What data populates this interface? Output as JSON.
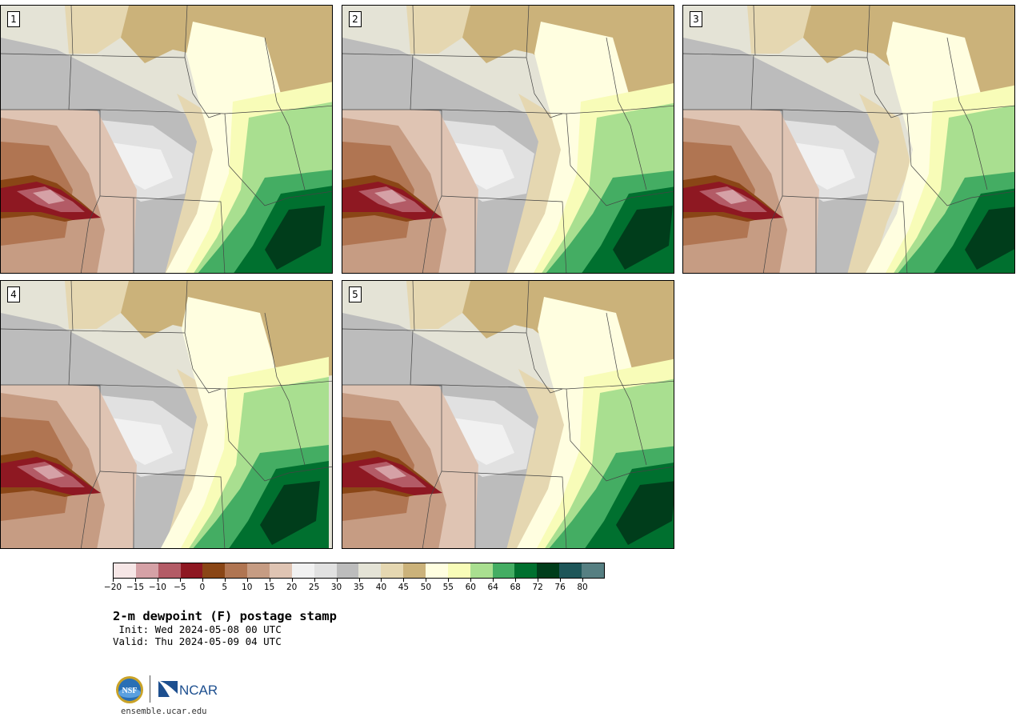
{
  "panels": [
    {
      "label": "1",
      "variant": 0
    },
    {
      "label": "2",
      "variant": 1
    },
    {
      "label": "3",
      "variant": 2
    },
    {
      "label": "4",
      "variant": 3
    },
    {
      "label": "5",
      "variant": 4
    }
  ],
  "colorbar": {
    "colors": [
      "#f6e6e6",
      "#d5a1a6",
      "#b35b66",
      "#8e1822",
      "#8a4616",
      "#b07552",
      "#c69c83",
      "#dfc4b3",
      "#f1f1f1",
      "#e1e1e1",
      "#bcbcbc",
      "#e4e3d6",
      "#e5d7b1",
      "#cbb27a",
      "#fffee0",
      "#f8fcb8",
      "#a9df90",
      "#44ad63",
      "#00702f",
      "#003d1b",
      "#1e5659",
      "#567f82"
    ],
    "ticks": [
      "−20",
      "−15",
      "−10",
      "−5",
      "0",
      "5",
      "10",
      "15",
      "20",
      "25",
      "30",
      "35",
      "40",
      "45",
      "50",
      "55",
      "60",
      "64",
      "68",
      "72",
      "76",
      "80"
    ]
  },
  "title": "2-m dewpoint (F) postage stamp",
  "init": " Init: Wed 2024-05-08 00 UTC",
  "valid": "Valid: Thu 2024-05-09 04 UTC",
  "logos": {
    "nsf_text": "NSF",
    "ncar_text": "NCAR"
  },
  "url": "ensemble.ucar.edu"
}
